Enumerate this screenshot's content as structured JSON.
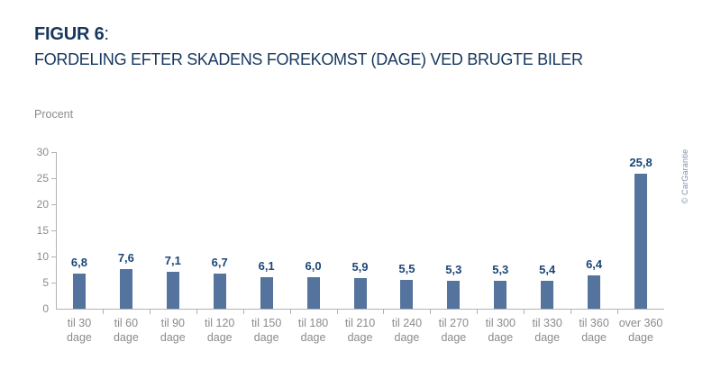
{
  "figure": {
    "label": "FIGUR 6",
    "colon": ":",
    "title": "FORDELING EFTER SKADENS FOREKOMST (DAGE) VED BRUGTE BILER"
  },
  "watermark": "© CarGarantie",
  "colors": {
    "navy": "#16375e",
    "value_label": "#1b4677",
    "bar": "#54739d",
    "gray_text": "#8b8b8b",
    "axis": "#b2b2b4",
    "watermark": "#7e90a5"
  },
  "chart_data": {
    "type": "bar",
    "title": "FORDELING EFTER SKADENS FOREKOMST (DAGE) VED BRUGTE BILER",
    "categories": [
      "til 30 dage",
      "til 60 dage",
      "til 90 dage",
      "til 120 dage",
      "til 150 dage",
      "til 180 dage",
      "til 210 dage",
      "til 240 dage",
      "til 270 dage",
      "til 300 dage",
      "til 330 dage",
      "til 360 dage",
      "over 360 dage"
    ],
    "values": [
      6.8,
      7.6,
      7.1,
      6.7,
      6.1,
      6.0,
      5.9,
      5.5,
      5.3,
      5.3,
      5.4,
      6.4,
      25.8
    ],
    "value_labels": [
      "6,8",
      "7,6",
      "7,1",
      "6,7",
      "6,1",
      "6,0",
      "5,9",
      "5,5",
      "5,3",
      "5,3",
      "5,4",
      "6,4",
      "25,8"
    ],
    "xlabel": "",
    "ylabel": "Procent",
    "ylim": [
      0,
      30
    ],
    "yticks": [
      0,
      5,
      10,
      15,
      20,
      25,
      30
    ],
    "grid": false,
    "legend": null,
    "data_labels": true
  }
}
